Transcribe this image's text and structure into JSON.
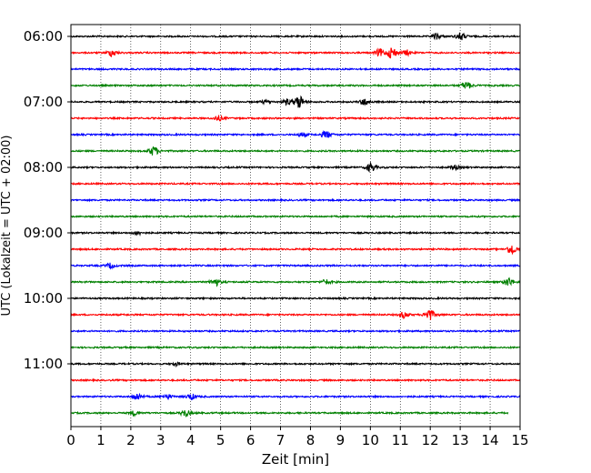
{
  "chart_data": {
    "type": "line",
    "subtype": "helicorder",
    "xlabel": "Zeit  [min]",
    "ylabel": "UTC (Lokalzeit = UTC + 02:00)",
    "xlim": [
      0,
      15
    ],
    "x_ticks": [
      "0",
      "1",
      "2",
      "3",
      "4",
      "5",
      "6",
      "7",
      "8",
      "9",
      "10",
      "11",
      "12",
      "13",
      "14",
      "15"
    ],
    "y_tick_labels": [
      {
        "label": "06:00",
        "row": 0
      },
      {
        "label": "07:00",
        "row": 4
      },
      {
        "label": "08:00",
        "row": 8
      },
      {
        "label": "09:00",
        "row": 12
      },
      {
        "label": "10:00",
        "row": 16
      },
      {
        "label": "11:00",
        "row": 20
      }
    ],
    "row_minutes": 15,
    "grid": "vertical dotted at each minute",
    "row_colors": [
      "#000000",
      "#ff0000",
      "#0000ff",
      "#008000"
    ],
    "rows": [
      {
        "start": "06:00",
        "end_minute": 15,
        "events": [
          {
            "t": 12.2,
            "amp": 0.6
          },
          {
            "t": 13.0,
            "amp": 0.8
          }
        ]
      },
      {
        "start": "06:15",
        "end_minute": 15,
        "events": [
          {
            "t": 1.35,
            "amp": 0.7
          },
          {
            "t": 10.3,
            "amp": 0.8
          },
          {
            "t": 10.7,
            "amp": 1.3
          },
          {
            "t": 11.2,
            "amp": 0.5
          }
        ]
      },
      {
        "start": "06:30",
        "end_minute": 15,
        "events": []
      },
      {
        "start": "06:45",
        "end_minute": 15,
        "events": [
          {
            "t": 13.2,
            "amp": 0.8
          }
        ]
      },
      {
        "start": "07:00",
        "end_minute": 15,
        "events": [
          {
            "t": 6.5,
            "amp": 0.4
          },
          {
            "t": 7.2,
            "amp": 0.6
          },
          {
            "t": 7.6,
            "amp": 1.4
          },
          {
            "t": 9.8,
            "amp": 0.7
          }
        ]
      },
      {
        "start": "07:15",
        "end_minute": 15,
        "events": [
          {
            "t": 4.9,
            "amp": 0.5
          }
        ]
      },
      {
        "start": "07:30",
        "end_minute": 15,
        "events": [
          {
            "t": 7.7,
            "amp": 0.4
          },
          {
            "t": 8.5,
            "amp": 0.8
          }
        ]
      },
      {
        "start": "07:45",
        "end_minute": 15,
        "events": [
          {
            "t": 2.75,
            "amp": 1.0
          }
        ]
      },
      {
        "start": "08:00",
        "end_minute": 15,
        "events": [
          {
            "t": 10.0,
            "amp": 0.9
          },
          {
            "t": 12.8,
            "amp": 0.4
          }
        ]
      },
      {
        "start": "08:15",
        "end_minute": 15,
        "events": []
      },
      {
        "start": "08:30",
        "end_minute": 15,
        "events": []
      },
      {
        "start": "08:45",
        "end_minute": 15,
        "events": []
      },
      {
        "start": "09:00",
        "end_minute": 15,
        "events": [
          {
            "t": 2.2,
            "amp": 0.4
          }
        ]
      },
      {
        "start": "09:15",
        "end_minute": 15,
        "events": [
          {
            "t": 14.7,
            "amp": 1.1
          }
        ]
      },
      {
        "start": "09:30",
        "end_minute": 15,
        "events": [
          {
            "t": 1.3,
            "amp": 0.5
          }
        ]
      },
      {
        "start": "09:45",
        "end_minute": 15,
        "events": [
          {
            "t": 4.8,
            "amp": 0.8
          },
          {
            "t": 8.5,
            "amp": 0.5
          },
          {
            "t": 14.6,
            "amp": 0.9
          }
        ]
      },
      {
        "start": "10:00",
        "end_minute": 15,
        "events": []
      },
      {
        "start": "10:15",
        "end_minute": 15,
        "events": [
          {
            "t": 11.1,
            "amp": 0.6
          },
          {
            "t": 11.95,
            "amp": 1.3
          }
        ]
      },
      {
        "start": "10:30",
        "end_minute": 15,
        "events": []
      },
      {
        "start": "10:45",
        "end_minute": 15,
        "events": []
      },
      {
        "start": "11:00",
        "end_minute": 15,
        "events": [
          {
            "t": 3.5,
            "amp": 0.3
          }
        ]
      },
      {
        "start": "11:15",
        "end_minute": 15,
        "events": []
      },
      {
        "start": "11:30",
        "end_minute": 15,
        "events": [
          {
            "t": 2.2,
            "amp": 0.7
          },
          {
            "t": 3.2,
            "amp": 0.5
          },
          {
            "t": 4.0,
            "amp": 0.6
          }
        ]
      },
      {
        "start": "11:45",
        "end_minute": 14.6,
        "events": [
          {
            "t": 2.1,
            "amp": 0.5
          },
          {
            "t": 3.8,
            "amp": 0.7
          }
        ]
      }
    ]
  }
}
